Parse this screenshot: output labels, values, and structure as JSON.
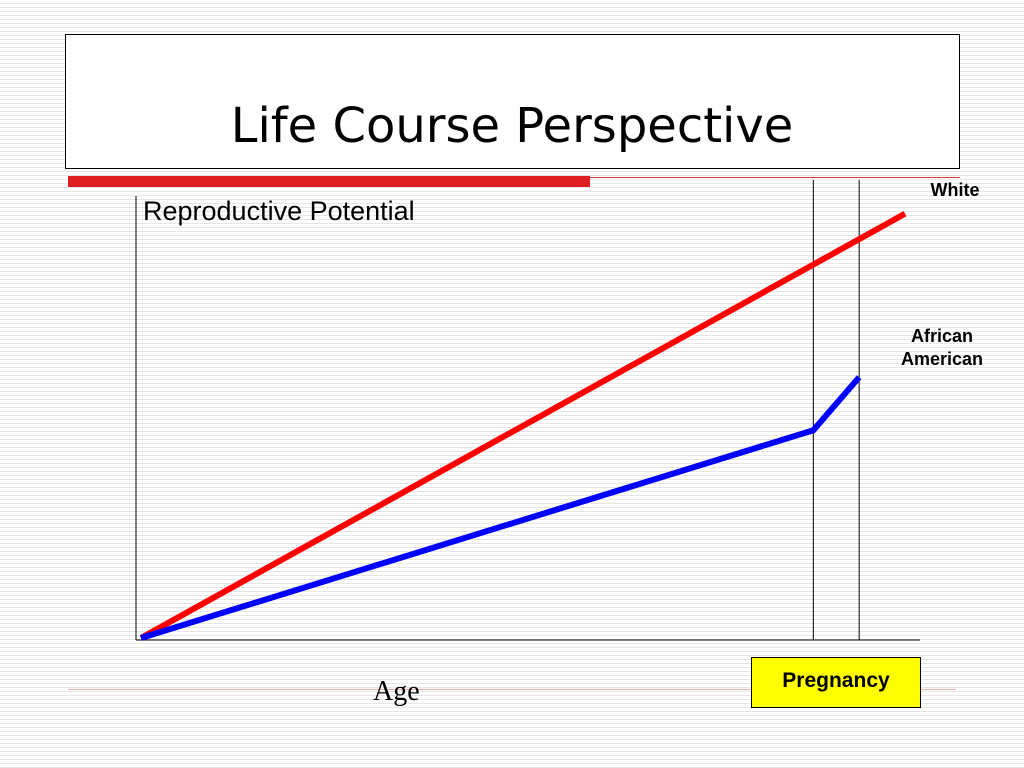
{
  "slide": {
    "title": "Life Course Perspective"
  },
  "chart_data": {
    "type": "line",
    "title": "",
    "ylabel": "Reproductive Potential",
    "xlabel": "Age",
    "xlim": [
      0,
      100
    ],
    "ylim": [
      0,
      100
    ],
    "series": [
      {
        "name": "White",
        "color": "#ff0000",
        "x": [
          0,
          100
        ],
        "y": [
          0,
          96
        ]
      },
      {
        "name": "African American",
        "color": "#0000ff",
        "x": [
          0,
          88,
          94
        ],
        "y": [
          0,
          47,
          59
        ]
      }
    ],
    "markers": [
      88,
      94
    ],
    "marker_label": "Pregnancy"
  },
  "legend": {
    "white": "White",
    "aa_line1": "African",
    "aa_line2": "American"
  }
}
